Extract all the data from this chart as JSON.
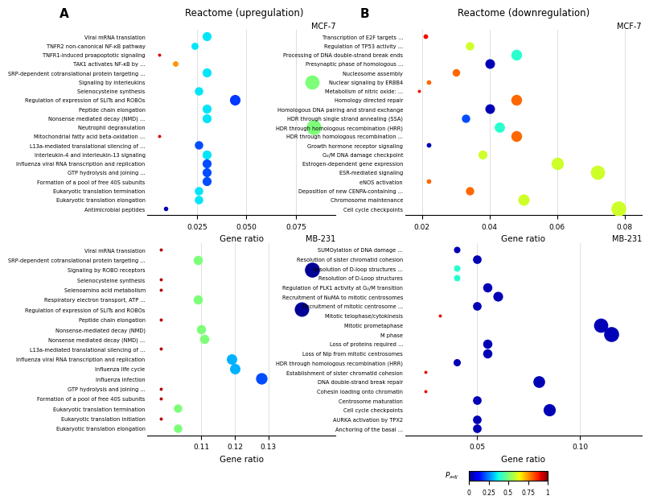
{
  "panel_A_MCF7": {
    "title": "MCF-7",
    "super_title": "Reactome (upregulation)",
    "xlabel": "Gene ratio",
    "terms": [
      "Viral mRNA translation",
      "TNFR2 non-canonical NF-κB pathway",
      "TNFR1-induced proapoptotic signaling",
      "TAK1 activates NF-κB by ...",
      "SRP-dependent cotranslational protein targeting ...",
      "Signaling by interleukins",
      "Selenocysteine synthesis",
      "Regulation of expression of SLITs and ROBOs",
      "Peptide chain elongation",
      "Nonsense mediated decay (NMD) ...",
      "Neutrophil degranulation",
      "Mitochondrial fatty acid beta-oxidation ...",
      "L13a-mediated translational silencing of ...",
      "Interleukin-4 and interleukin-13 signaling",
      "Influenza viral RNA transcription and replication",
      "GTP hydrolysis and joining ...",
      "Formation of a pool of free 40S subunits",
      "Eukaryotic translation termination",
      "Eukaryotic translation elongation",
      "Antimicrobial peptides"
    ],
    "gene_ratio": [
      0.03,
      0.024,
      0.006,
      0.014,
      0.03,
      0.083,
      0.026,
      0.044,
      0.03,
      0.03,
      0.084,
      0.006,
      0.026,
      0.03,
      0.03,
      0.03,
      0.03,
      0.026,
      0.026,
      0.009
    ],
    "p_adj": [
      0.35,
      0.35,
      0.92,
      0.75,
      0.35,
      0.5,
      0.35,
      0.18,
      0.35,
      0.35,
      0.5,
      0.92,
      0.2,
      0.35,
      0.2,
      0.2,
      0.2,
      0.35,
      0.35,
      0.05
    ],
    "count": [
      8,
      5,
      1,
      3,
      8,
      20,
      7,
      11,
      8,
      8,
      22,
      1,
      7,
      8,
      8,
      8,
      8,
      7,
      7,
      2
    ],
    "xlim": [
      0.0,
      0.095
    ],
    "xticks": [
      0.025,
      0.05,
      0.075
    ]
  },
  "panel_B_MCF7": {
    "title": "MCF-7",
    "super_title": "Reactome (downregulation)",
    "xlabel": "Gene ratio",
    "terms": [
      "Transcription of E2F targets ...",
      "Regulation of TP53 activity ...",
      "Processing of DNA double-strand break ends",
      "Presynaptic phase of homologous ...",
      "Nucleosome assembly",
      "Nuclear signaling by ERBB4",
      "Metabolism of nitric oxide: ...",
      "Homology directed repair",
      "Homologous DNA pairing and strand exchange",
      "HDR through single strand annealing (SSA)",
      "HDR through homologous recombination (HRR)",
      "HDR through homologous recombination ...",
      "Growth hormone receptor signaling",
      "G₂/M DNA damage checkpoint",
      "Estrogen-dependent gene expression",
      "ESR-mediated signaling",
      "eNOS activation",
      "Deposition of new CENPA-containing ...",
      "Chromosome maintenance",
      "Cell cycle checkpoints"
    ],
    "gene_ratio": [
      0.021,
      0.034,
      0.048,
      0.04,
      0.03,
      0.022,
      0.019,
      0.048,
      0.04,
      0.033,
      0.043,
      0.048,
      0.022,
      0.038,
      0.06,
      0.072,
      0.022,
      0.034,
      0.05,
      0.078
    ],
    "p_adj": [
      0.9,
      0.6,
      0.4,
      0.05,
      0.8,
      0.8,
      0.9,
      0.8,
      0.05,
      0.2,
      0.4,
      0.8,
      0.05,
      0.6,
      0.6,
      0.6,
      0.8,
      0.8,
      0.6,
      0.6
    ],
    "count": [
      3,
      7,
      11,
      9,
      6,
      3,
      2,
      11,
      9,
      7,
      10,
      11,
      3,
      8,
      14,
      18,
      3,
      7,
      12,
      20
    ],
    "xlim": [
      0.015,
      0.085
    ],
    "xticks": [
      0.02,
      0.04,
      0.06,
      0.08
    ]
  },
  "panel_A_MB231": {
    "title": "MB-231",
    "xlabel": "Gene ratio",
    "terms": [
      "Viral mRNA translation",
      "SRP-dependent cotranslational protein targeting ...",
      "Signaling by ROBO receptors",
      "Selenocysteine synthesis",
      "Selenoamino acid metabolism",
      "Respiratory electron transport, ATP ...",
      "Regulation of expression of SLITs and ROBOs",
      "Peptide chain elongation",
      "Nonsense-mediated decay (NMD)",
      "Nonsense mediated decay (NMD) ...",
      "L13a-mediated translational silencing of ...",
      "Influenza viral RNA transcription and replication",
      "Influenza life cycle",
      "Influenza infection",
      "GTP hydrolysis and joining ...",
      "Formation of a pool of free 40S subunits",
      "Eukaryotic translation termination",
      "Eukaryotic translation initiation",
      "Eukaryotic translation elongation"
    ],
    "gene_ratio": [
      0.098,
      0.109,
      0.143,
      0.098,
      0.098,
      0.109,
      0.14,
      0.098,
      0.11,
      0.111,
      0.098,
      0.119,
      0.12,
      0.128,
      0.098,
      0.098,
      0.103,
      0.098,
      0.103
    ],
    "p_adj": [
      0.95,
      0.5,
      0.02,
      0.95,
      0.95,
      0.5,
      0.02,
      0.95,
      0.5,
      0.5,
      0.95,
      0.3,
      0.3,
      0.2,
      0.95,
      0.95,
      0.5,
      0.95,
      0.5
    ],
    "count": [
      2,
      12,
      30,
      2,
      2,
      12,
      28,
      2,
      12,
      12,
      2,
      15,
      15,
      18,
      2,
      2,
      10,
      2,
      10
    ],
    "xlim": [
      0.094,
      0.15
    ],
    "xticks": [
      0.11,
      0.12,
      0.13
    ]
  },
  "panel_B_MB231": {
    "title": "MB-231",
    "xlabel": "Gene ratio",
    "terms": [
      "SUMOylation of DNA damage ...",
      "Resolution of sister chromatid cohesion",
      "Resolution of D-loop structures ...",
      "Resolution of D-Loop structures",
      "Regulation of PLK1 activity at G₂/M transition",
      "Recruitment of NuMA to mitotic centrosomes",
      "Recruitment of mitotic centrosome ...",
      "Mitotic telophase/cytokinesis",
      "Mitotic prometaphase",
      "M phase",
      "Loss of proteins required ...",
      "Loss of Nip from mitotic centrosomes",
      "HDR through homologous recombination (HRR)",
      "Establishment of sister chromatid cohesion",
      "DNA double-strand break repair",
      "Cohesin loading onto chromatin",
      "Centrosome maturation",
      "Cell cycle checkpoints",
      "AURKA activation by TPX2",
      "Anchoring of the basal ..."
    ],
    "gene_ratio": [
      0.04,
      0.05,
      0.04,
      0.04,
      0.055,
      0.06,
      0.05,
      0.032,
      0.11,
      0.115,
      0.055,
      0.055,
      0.04,
      0.025,
      0.08,
      0.025,
      0.05,
      0.085,
      0.05,
      0.05
    ],
    "p_adj": [
      0.05,
      0.05,
      0.4,
      0.4,
      0.05,
      0.05,
      0.05,
      0.9,
      0.05,
      0.05,
      0.05,
      0.05,
      0.05,
      0.9,
      0.05,
      0.9,
      0.05,
      0.05,
      0.05,
      0.05
    ],
    "count": [
      5,
      8,
      5,
      5,
      9,
      10,
      8,
      2,
      20,
      22,
      9,
      9,
      6,
      2,
      14,
      2,
      8,
      15,
      8,
      8
    ],
    "xlim": [
      0.015,
      0.13
    ],
    "xticks": [
      0.05,
      0.1
    ]
  },
  "colormap": "jet",
  "legend_title": "P_adj",
  "cbar_ticks": [
    0,
    0.25,
    0.5,
    0.75,
    1
  ],
  "cbar_ticklabels": [
    "0",
    "0.25",
    "0.5",
    "0.75",
    "1"
  ]
}
